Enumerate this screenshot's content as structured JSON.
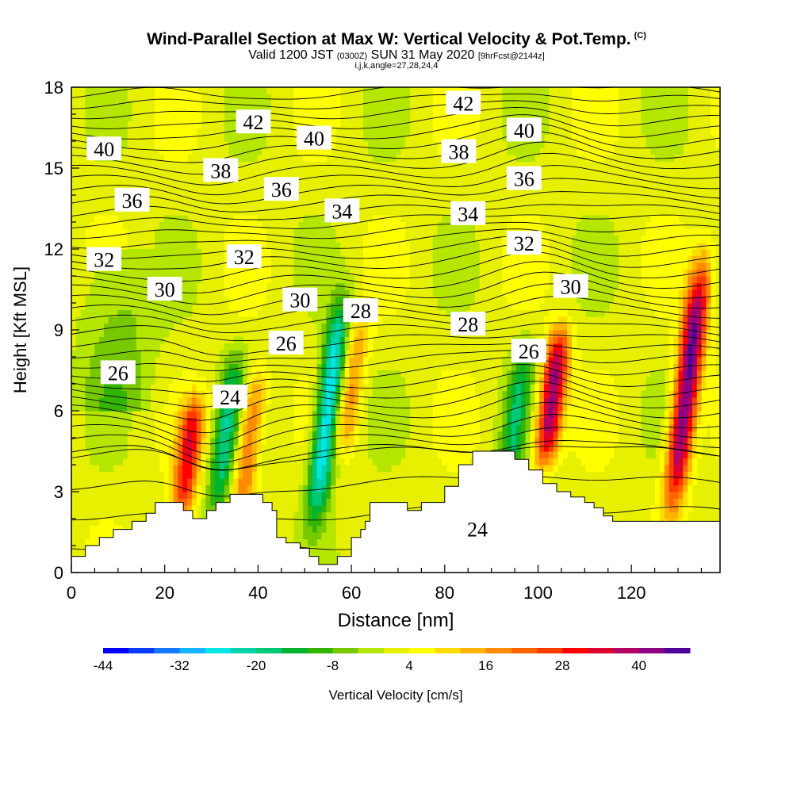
{
  "header": {
    "title": "Wind-Parallel Section at Max W: Vertical Velocity & Pot.Temp.",
    "copyright": "(C)",
    "valid_prefix": "Valid 1200 JST",
    "valid_zulu": "(0300Z)",
    "valid_date": "SUN 31 May 2020",
    "forecast": "[9hrFcst@2144z]",
    "indices": "i,j,k,angle=27,28,24,4"
  },
  "colors": {
    "palette": [
      "#0000ff",
      "#0a3cff",
      "#1478ff",
      "#14b4ff",
      "#00e6e6",
      "#00d2aa",
      "#00c878",
      "#00b432",
      "#32b400",
      "#78c800",
      "#b4e600",
      "#e6f000",
      "#ffff00",
      "#ffdc00",
      "#ffb400",
      "#ff8c00",
      "#ff6400",
      "#ff3c00",
      "#ff0000",
      "#dc0032",
      "#b40064",
      "#8c0082",
      "#500096"
    ],
    "terrain": "#ffffff",
    "contour": "#000000"
  },
  "chart_data": {
    "type": "heatmap",
    "xlabel": "Distance [nm]",
    "ylabel": "Height [Kft MSL]",
    "xlim": [
      0,
      139
    ],
    "ylim": [
      0,
      18
    ],
    "xticks": [
      "0",
      "20",
      "40",
      "60",
      "80",
      "100",
      "120"
    ],
    "yticks": [
      "0",
      "3",
      "6",
      "9",
      "12",
      "15",
      "18"
    ],
    "colorbar": {
      "label": "Vertical Velocity [cm/s]",
      "min": -44,
      "max": 48,
      "step": 4,
      "tick_labels": [
        "-44",
        "-32",
        "-20",
        "-8",
        "4",
        "16",
        "28",
        "40"
      ]
    },
    "terrain_height_kft": [
      [
        0,
        0.6
      ],
      [
        3,
        0.6
      ],
      [
        3,
        1.0
      ],
      [
        6,
        1.0
      ],
      [
        6,
        1.3
      ],
      [
        9,
        1.3
      ],
      [
        9,
        1.6
      ],
      [
        13,
        1.6
      ],
      [
        13,
        1.9
      ],
      [
        16,
        1.9
      ],
      [
        16,
        2.2
      ],
      [
        18,
        2.2
      ],
      [
        18,
        2.6
      ],
      [
        24,
        2.6
      ],
      [
        24,
        2.3
      ],
      [
        26,
        2.3
      ],
      [
        26,
        2.0
      ],
      [
        29,
        2.0
      ],
      [
        29,
        2.3
      ],
      [
        31,
        2.3
      ],
      [
        31,
        2.6
      ],
      [
        34,
        2.6
      ],
      [
        34,
        2.9
      ],
      [
        41,
        2.9
      ],
      [
        41,
        2.6
      ],
      [
        43,
        2.6
      ],
      [
        43,
        2.3
      ],
      [
        44,
        2.3
      ],
      [
        44,
        1.3
      ],
      [
        46,
        1.3
      ],
      [
        46,
        1.1
      ],
      [
        49,
        1.1
      ],
      [
        49,
        0.9
      ],
      [
        51,
        0.9
      ],
      [
        51,
        0.6
      ],
      [
        53,
        0.6
      ],
      [
        53,
        0.3
      ],
      [
        57,
        0.3
      ],
      [
        57,
        0.6
      ],
      [
        60,
        0.6
      ],
      [
        60,
        1.3
      ],
      [
        62,
        1.3
      ],
      [
        62,
        1.6
      ],
      [
        63,
        1.6
      ],
      [
        63,
        1.9
      ],
      [
        64,
        1.9
      ],
      [
        64,
        2.6
      ],
      [
        72,
        2.6
      ],
      [
        72,
        2.3
      ],
      [
        75,
        2.3
      ],
      [
        75,
        2.6
      ],
      [
        80,
        2.6
      ],
      [
        80,
        3.2
      ],
      [
        83,
        3.2
      ],
      [
        83,
        4.0
      ],
      [
        86,
        4.0
      ],
      [
        86,
        4.5
      ],
      [
        95,
        4.5
      ],
      [
        95,
        4.2
      ],
      [
        98,
        4.2
      ],
      [
        98,
        3.8
      ],
      [
        101,
        3.8
      ],
      [
        101,
        3.3
      ],
      [
        104,
        3.3
      ],
      [
        104,
        3.0
      ],
      [
        107,
        3.0
      ],
      [
        107,
        2.8
      ],
      [
        110,
        2.8
      ],
      [
        110,
        2.6
      ],
      [
        112,
        2.6
      ],
      [
        112,
        2.4
      ],
      [
        114,
        2.4
      ],
      [
        114,
        2.1
      ],
      [
        116,
        2.1
      ],
      [
        116,
        1.9
      ],
      [
        139,
        1.9
      ]
    ],
    "vertical_velocity_features": [
      {
        "x_nm": 25,
        "z_kft_range": [
          2.5,
          6.0
        ],
        "w_cm_s": 28
      },
      {
        "x_nm": 33,
        "z_kft_range": [
          2.5,
          7.5
        ],
        "w_cm_s": -20
      },
      {
        "x_nm": 38,
        "z_kft_range": [
          2.5,
          7.0
        ],
        "w_cm_s": 20
      },
      {
        "x_nm": 55,
        "z_kft_range": [
          2.5,
          9.5
        ],
        "w_cm_s": -32
      },
      {
        "x_nm": 60,
        "z_kft_range": [
          5.0,
          9.0
        ],
        "w_cm_s": 16
      },
      {
        "x_nm": 95,
        "z_kft_range": [
          3.0,
          8.0
        ],
        "w_cm_s": -16
      },
      {
        "x_nm": 103,
        "z_kft_range": [
          4.5,
          8.5
        ],
        "w_cm_s": 40
      },
      {
        "x_nm": 132,
        "z_kft_range": [
          3.0,
          11.0
        ],
        "w_cm_s": 44
      }
    ],
    "theta_contours": [
      {
        "label": "24",
        "label_at": [
          [
            34,
            6.5
          ],
          [
            87,
            1.6
          ]
        ]
      },
      {
        "label": "26",
        "label_at": [
          [
            10,
            7.4
          ],
          [
            46,
            8.5
          ],
          [
            98,
            8.2
          ]
        ]
      },
      {
        "label": "28",
        "label_at": [
          [
            62,
            9.7
          ],
          [
            85,
            9.2
          ]
        ]
      },
      {
        "label": "30",
        "label_at": [
          [
            20,
            10.5
          ],
          [
            49,
            10.1
          ],
          [
            107,
            10.6
          ]
        ]
      },
      {
        "label": "32",
        "label_at": [
          [
            7,
            11.6
          ],
          [
            37,
            11.7
          ],
          [
            97,
            12.2
          ]
        ]
      },
      {
        "label": "34",
        "label_at": [
          [
            58,
            13.4
          ],
          [
            85,
            13.3
          ]
        ]
      },
      {
        "label": "36",
        "label_at": [
          [
            13,
            13.8
          ],
          [
            45,
            14.2
          ],
          [
            97,
            14.6
          ]
        ]
      },
      {
        "label": "38",
        "label_at": [
          [
            32,
            14.9
          ],
          [
            83,
            15.6
          ]
        ]
      },
      {
        "label": "40",
        "label_at": [
          [
            7,
            15.7
          ],
          [
            52,
            16.1
          ],
          [
            97,
            16.4
          ]
        ]
      },
      {
        "label": "42",
        "label_at": [
          [
            39,
            16.7
          ],
          [
            84,
            17.4
          ]
        ]
      }
    ]
  }
}
